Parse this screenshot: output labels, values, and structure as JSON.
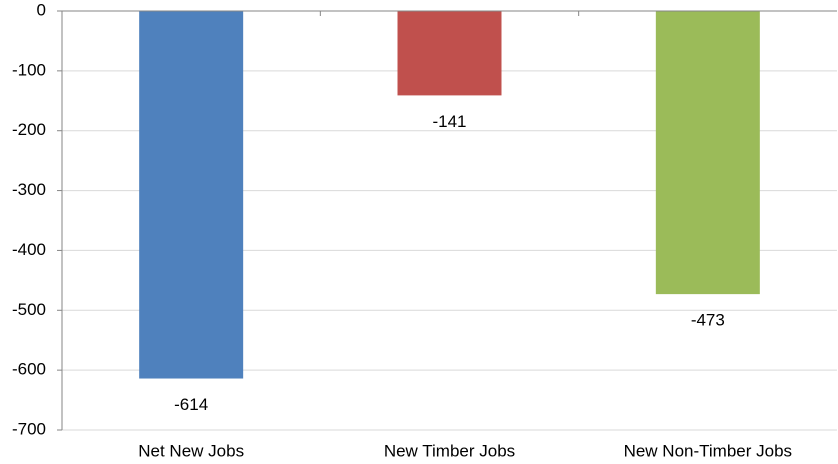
{
  "chart_data": {
    "type": "bar",
    "categories": [
      "Net New Jobs",
      "New Timber Jobs",
      "New Non-Timber Jobs"
    ],
    "values": [
      -614,
      -141,
      -473
    ],
    "colors": [
      "#4f81bd",
      "#c0504d",
      "#9bbb59"
    ],
    "ylim": [
      -700,
      0
    ],
    "yticks": [
      0,
      -100,
      -200,
      -300,
      -400,
      -500,
      -600,
      -700
    ],
    "grid": true
  }
}
